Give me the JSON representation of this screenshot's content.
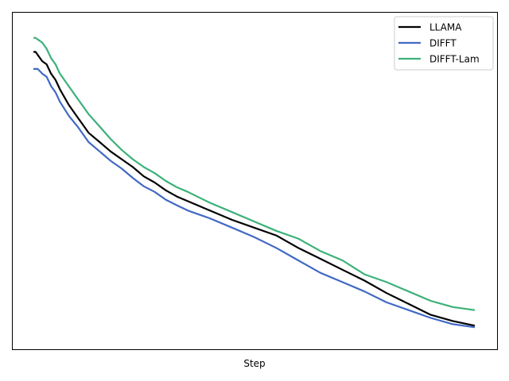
{
  "chart_data": {
    "type": "line",
    "title": "",
    "xlabel": "Step",
    "ylabel": "",
    "xlim": [
      0,
      100
    ],
    "ylim": [
      0,
      100
    ],
    "grid": false,
    "legend_position": "top-right",
    "x": [
      0,
      0.5,
      1,
      2,
      3,
      4,
      5,
      6,
      8,
      10,
      12.5,
      15,
      17.5,
      20,
      22.5,
      25,
      27.5,
      30,
      32.5,
      35,
      40,
      45,
      50,
      55,
      60,
      65,
      70,
      75,
      80,
      85,
      90,
      95,
      100
    ],
    "series": [
      {
        "name": "LLAMA",
        "color": "#000000",
        "values": [
          92,
          92,
          91,
          89,
          88,
          85,
          83,
          80,
          75,
          71,
          66,
          63,
          60,
          57.5,
          55,
          52,
          50,
          47.5,
          45.5,
          44,
          41,
          38,
          35.5,
          33,
          29,
          25.5,
          22,
          18.5,
          14.5,
          11,
          7.5,
          5.5,
          4
        ]
      },
      {
        "name": "DIFFT",
        "color": "#4169c5",
        "values": [
          86.5,
          86.5,
          86.5,
          85,
          84,
          81,
          79,
          76,
          71.5,
          68,
          63,
          60,
          57,
          54.5,
          51.5,
          48.8,
          47,
          44.5,
          42.7,
          41,
          38.5,
          35.5,
          32.5,
          29,
          25,
          21,
          18,
          15,
          11.5,
          9,
          6.5,
          4.5,
          3.5
        ]
      },
      {
        "name": "DIFFT-Lam",
        "color": "#3cb179",
        "values": [
          96.5,
          96.5,
          96,
          95,
          93,
          90,
          88,
          85,
          81,
          77,
          72,
          68,
          64,
          60.5,
          57.5,
          55,
          53,
          50.5,
          48.5,
          47,
          43.5,
          40.5,
          37.5,
          34.5,
          32,
          28,
          25,
          20.5,
          18,
          15,
          12,
          10,
          9
        ]
      }
    ]
  }
}
